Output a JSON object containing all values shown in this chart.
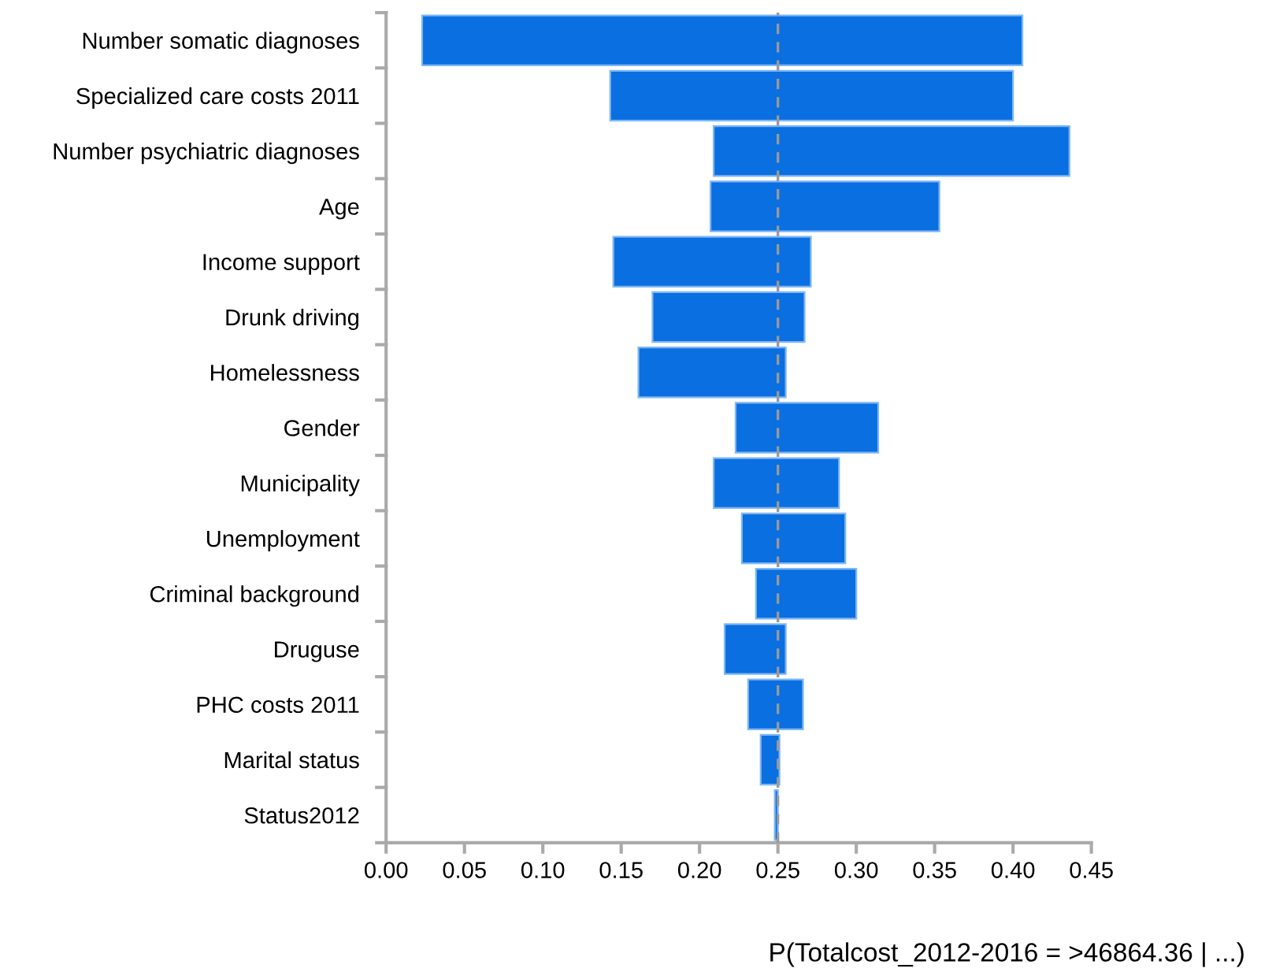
{
  "chart_data": {
    "type": "bar",
    "orientation": "horizontal",
    "categories": [
      "Number somatic diagnoses",
      "Specialized care costs 2011",
      "Number psychiatric diagnoses",
      "Age",
      "Income support",
      "Drunk driving",
      "Homelessness",
      "Gender",
      "Municipality",
      "Unemployment",
      "Criminal background",
      "Druguse",
      "PHC costs 2011",
      "Marital status",
      "Status2012"
    ],
    "base": [
      0.023,
      0.143,
      0.209,
      0.207,
      0.145,
      0.17,
      0.161,
      0.223,
      0.209,
      0.227,
      0.236,
      0.216,
      0.231,
      0.239,
      0.248
    ],
    "values": [
      0.383,
      0.257,
      0.227,
      0.146,
      0.126,
      0.097,
      0.094,
      0.091,
      0.08,
      0.066,
      0.064,
      0.039,
      0.035,
      0.012,
      0.002
    ],
    "color": "#0a6fe0",
    "xlim": [
      0,
      0.45
    ],
    "xticks": [
      {
        "value": 0,
        "label": "0.00"
      },
      {
        "value": 0.05,
        "label": "0.05"
      },
      {
        "value": 0.1,
        "label": "0.10"
      },
      {
        "value": 0.15,
        "label": "0.15"
      },
      {
        "value": 0.2,
        "label": "0.20"
      },
      {
        "value": 0.25,
        "label": "0.25"
      },
      {
        "value": 0.3,
        "label": "0.30"
      },
      {
        "value": 0.35,
        "label": "0.35"
      },
      {
        "value": 0.4,
        "label": "0.40"
      },
      {
        "value": 0.45,
        "label": "0.45"
      }
    ],
    "ref_lines": [
      {
        "axis": "x",
        "value": 0.25,
        "color": "#999999",
        "line_style": "dashed"
      }
    ],
    "xlabel": "P(Totalcost_2012-2016 = >46864.36 | ...)",
    "grid": false,
    "legend": false
  }
}
